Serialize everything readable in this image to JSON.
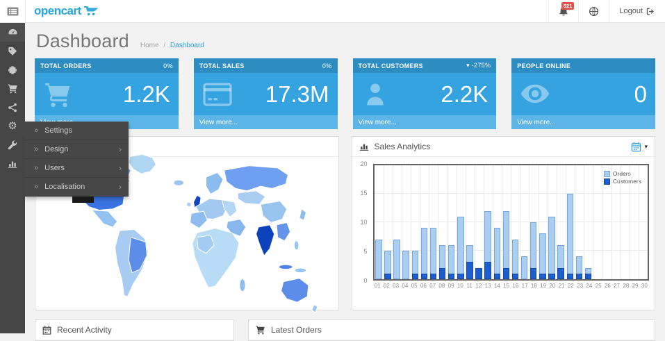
{
  "header": {
    "logo_text": "opencart",
    "notification_badge": "521",
    "logout_label": "Logout"
  },
  "sidebar": {
    "items": [
      {
        "name": "dashboard",
        "icon": "speedometer-icon",
        "active": true
      },
      {
        "name": "catalog",
        "icon": "tag-icon"
      },
      {
        "name": "extensions",
        "icon": "puzzle-icon"
      },
      {
        "name": "sales",
        "icon": "cart-icon"
      },
      {
        "name": "marketing",
        "icon": "share-icon"
      },
      {
        "name": "system",
        "icon": "gear-icon",
        "open": true
      },
      {
        "name": "tools",
        "icon": "wrench-icon"
      },
      {
        "name": "reports",
        "icon": "bar-chart-icon"
      }
    ]
  },
  "flyout_menu": {
    "items": [
      {
        "label": "Settings",
        "has_submenu": false
      },
      {
        "label": "Design",
        "has_submenu": true
      },
      {
        "label": "Users",
        "has_submenu": true
      },
      {
        "label": "Localisation",
        "has_submenu": true
      }
    ],
    "prefix_glyph": "»",
    "submenu_glyph": "›"
  },
  "page": {
    "title": "Dashboard",
    "breadcrumb_home": "Home",
    "breadcrumb_sep": "/",
    "breadcrumb_current": "Dashboard"
  },
  "tiles": [
    {
      "label": "TOTAL ORDERS",
      "delta": "0%",
      "value": "1.2K",
      "icon": "cart-icon",
      "footer": "View more..."
    },
    {
      "label": "TOTAL SALES",
      "delta": "0%",
      "value": "17.3M",
      "icon": "credit-card-icon",
      "footer": "View more..."
    },
    {
      "label": "TOTAL CUSTOMERS",
      "delta": "▾ -275%",
      "value": "2.2K",
      "icon": "user-icon",
      "footer": "View more..."
    },
    {
      "label": "PEOPLE ONLINE",
      "delta": "",
      "value": "0",
      "icon": "eye-icon",
      "footer": "View more..."
    }
  ],
  "chart_panel": {
    "title": "Sales Analytics"
  },
  "chart_data": {
    "type": "bar",
    "title": "Sales Analytics",
    "x": [
      "01",
      "02",
      "03",
      "04",
      "05",
      "06",
      "07",
      "08",
      "09",
      "10",
      "11",
      "12",
      "13",
      "14",
      "15",
      "16",
      "17",
      "18",
      "19",
      "20",
      "21",
      "22",
      "23",
      "24",
      "25",
      "26",
      "27",
      "28",
      "29",
      "30"
    ],
    "series": [
      {
        "name": "Orders",
        "color": "#a9cef2",
        "border": "#76a7e0",
        "values": [
          7,
          5,
          7,
          5,
          5,
          9,
          9,
          6,
          6,
          11,
          6,
          2,
          12,
          9,
          12,
          7,
          4,
          10,
          8,
          11,
          6,
          15,
          4,
          2,
          0,
          0,
          0,
          0,
          0,
          0
        ]
      },
      {
        "name": "Customers",
        "color": "#1c5ecf",
        "border": "#154a9e",
        "values": [
          0,
          1,
          0,
          0,
          1,
          1,
          1,
          2,
          1,
          1,
          3,
          2,
          3,
          1,
          2,
          1,
          0,
          2,
          1,
          1,
          2,
          1,
          1,
          1,
          0,
          0,
          0,
          0,
          0,
          0
        ]
      }
    ],
    "ylim": [
      0,
      20
    ],
    "yticks": [
      0,
      5,
      10,
      15,
      20
    ],
    "xlabel": "",
    "ylabel": "",
    "grid": true,
    "legend_position": "top-right"
  },
  "bottom": {
    "recent_activity_title": "Recent Activity",
    "latest_orders_title": "Latest Orders"
  },
  "icons": [
    "menu-toggle-icon",
    "bell-icon",
    "globe-icon",
    "logout-icon",
    "speedometer-icon",
    "tag-icon",
    "puzzle-icon",
    "cart-icon",
    "share-icon",
    "gear-icon",
    "wrench-icon",
    "bar-chart-icon",
    "credit-card-icon",
    "user-icon",
    "eye-icon",
    "calendar-icon",
    "world-map"
  ],
  "colors": {
    "accent": "#29a5db",
    "tile_blue": "#34a3e0",
    "badge_red": "#e0544c",
    "sidebar_dark": "#454545",
    "orders_bar": "#a9cef2",
    "customers_bar": "#1c5ecf"
  }
}
